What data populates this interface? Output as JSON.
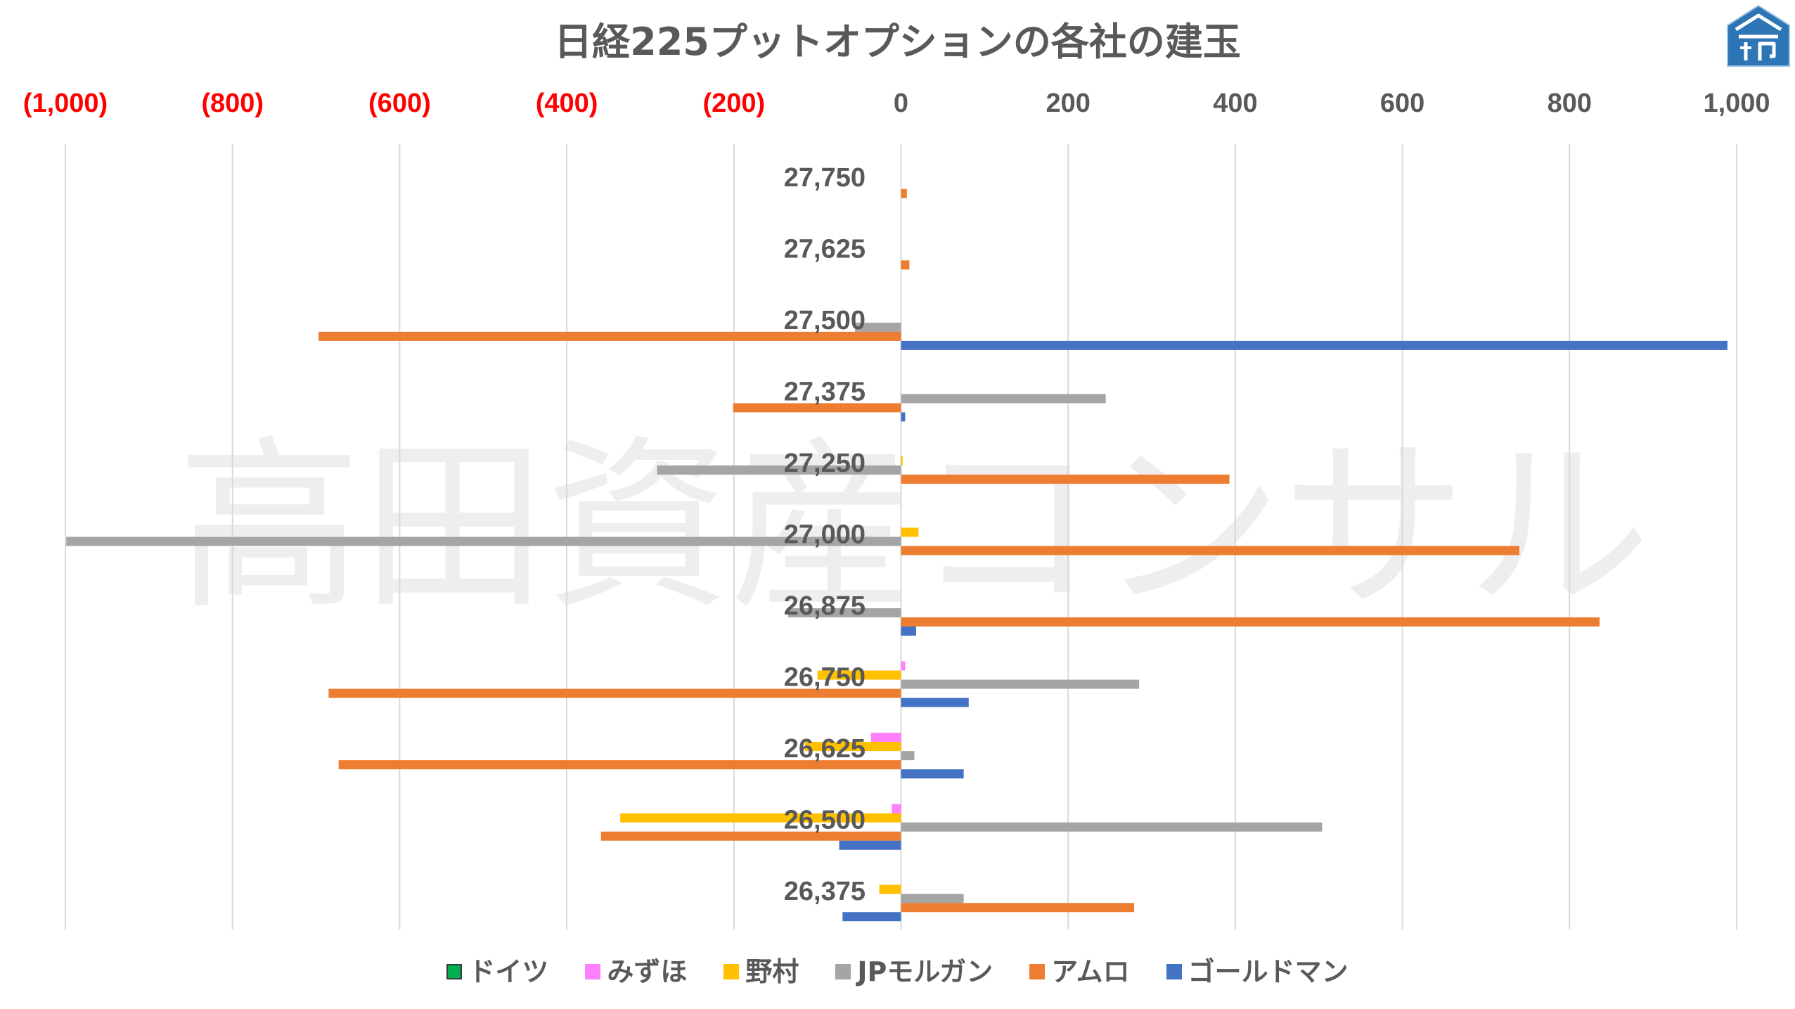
{
  "watermark": "高田資産コンサル",
  "logo": {
    "icon": "house-logo-icon",
    "color": "#2E75B6"
  },
  "chart_data": {
    "type": "bar",
    "orientation": "horizontal",
    "title": "日経225プットオプションの各社の建玉",
    "xlabel": "",
    "ylabel": "",
    "xlim": [
      -1000,
      1000
    ],
    "xticks": [
      -1000,
      -800,
      -600,
      -400,
      -200,
      0,
      200,
      400,
      600,
      800,
      1000
    ],
    "xtick_labels": [
      "(1,000)",
      "(800)",
      "(600)",
      "(400)",
      "(200)",
      "0",
      "200",
      "400",
      "600",
      "800",
      "1,000"
    ],
    "categories": [
      "27,750",
      "27,625",
      "27,500",
      "27,375",
      "27,250",
      "27,000",
      "26,875",
      "26,750",
      "26,625",
      "26,500",
      "26,375"
    ],
    "series": [
      {
        "name": "ドイツ",
        "color": "#00B050",
        "values": [
          0,
          0,
          0,
          0,
          0,
          0,
          0,
          0,
          0,
          0,
          0
        ]
      },
      {
        "name": "みずほ",
        "color": "#FF80FF",
        "values": [
          0,
          0,
          0,
          0,
          0,
          0,
          0,
          5,
          -36,
          -11,
          0
        ]
      },
      {
        "name": "野村",
        "color": "#FFC000",
        "values": [
          0,
          0,
          0,
          0,
          2,
          21,
          0,
          -100,
          -115,
          -336,
          -26
        ]
      },
      {
        "name": "JPモルガン",
        "color": "#A5A5A5",
        "values": [
          0,
          0,
          -55,
          245,
          -292,
          -999,
          -135,
          285,
          16,
          504,
          75
        ]
      },
      {
        "name": "アムロ",
        "color": "#ED7D31",
        "values": [
          7,
          10,
          -697,
          -201,
          393,
          740,
          836,
          -685,
          -673,
          -359,
          279
        ]
      },
      {
        "name": "ゴールドマン",
        "color": "#4472C4",
        "values": [
          0,
          0,
          989,
          5,
          0,
          0,
          18,
          81,
          75,
          -74,
          -70
        ]
      }
    ],
    "grid": true,
    "legend": "bottom",
    "colors": {
      "negative_tick": "#FF0000",
      "tick": "#595959",
      "grid": "#D9D9D9",
      "text": "#595959"
    }
  }
}
